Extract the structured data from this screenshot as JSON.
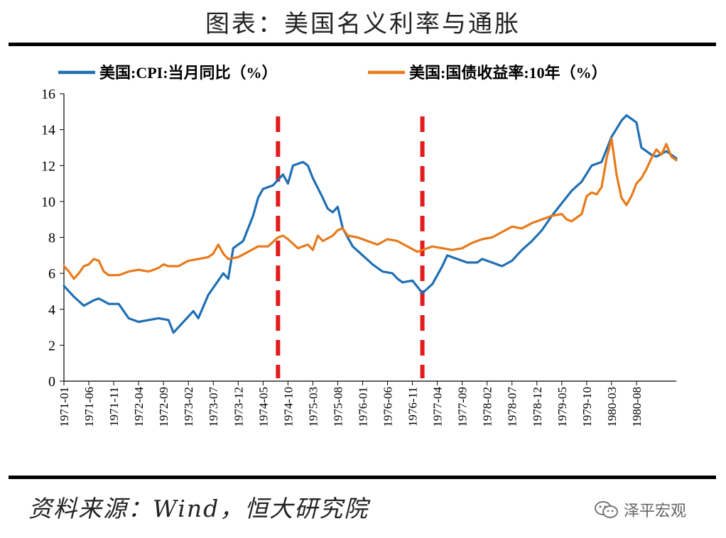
{
  "header": {
    "title": "图表：美国名义利率与通胀"
  },
  "footer": {
    "source": "资料来源：Wind，恒大研究院",
    "watermark": "泽平宏观"
  },
  "colors": {
    "cpi": "#1f6fb4",
    "yield": "#e87a1a",
    "marker": "#e31b1b"
  },
  "chart_data": {
    "type": "line",
    "ylim": [
      0,
      16
    ],
    "yticks": [
      "0",
      "2",
      "4",
      "6",
      "8",
      "10",
      "12",
      "14",
      "16"
    ],
    "x_tick_labels": [
      "1971-01",
      "1971-06",
      "1971-11",
      "1972-04",
      "1972-09",
      "1973-02",
      "1973-07",
      "1973-12",
      "1974-05",
      "1974-10",
      "1975-03",
      "1975-08",
      "1976-01",
      "1976-06",
      "1976-11",
      "1977-04",
      "1977-09",
      "1978-02",
      "1978-07",
      "1978-12",
      "1979-05",
      "1979-10",
      "1980-03",
      "1980-08"
    ],
    "x_range": [
      "1971-01",
      "1981-04"
    ],
    "markers": [
      "1974-08",
      "1977-01"
    ],
    "series": [
      {
        "name": "美国:CPI:当月同比（%）",
        "color": "#1f6fb4",
        "points": [
          [
            "1971-01",
            5.3
          ],
          [
            "1971-03",
            4.7
          ],
          [
            "1971-05",
            4.2
          ],
          [
            "1971-07",
            4.5
          ],
          [
            "1971-08",
            4.6
          ],
          [
            "1971-10",
            4.3
          ],
          [
            "1971-12",
            4.3
          ],
          [
            "1972-02",
            3.5
          ],
          [
            "1972-04",
            3.3
          ],
          [
            "1972-06",
            3.4
          ],
          [
            "1972-08",
            3.5
          ],
          [
            "1972-10",
            3.4
          ],
          [
            "1972-11",
            2.7
          ],
          [
            "1972-12",
            3.0
          ],
          [
            "1973-02",
            3.6
          ],
          [
            "1973-03",
            3.9
          ],
          [
            "1973-04",
            3.5
          ],
          [
            "1973-06",
            4.8
          ],
          [
            "1973-08",
            5.6
          ],
          [
            "1973-09",
            6.0
          ],
          [
            "1973-10",
            5.7
          ],
          [
            "1973-11",
            7.4
          ],
          [
            "1974-01",
            7.8
          ],
          [
            "1974-03",
            9.2
          ],
          [
            "1974-04",
            10.2
          ],
          [
            "1974-05",
            10.7
          ],
          [
            "1974-07",
            10.9
          ],
          [
            "1974-09",
            11.5
          ],
          [
            "1974-10",
            11.0
          ],
          [
            "1974-11",
            12.0
          ],
          [
            "1975-01",
            12.2
          ],
          [
            "1975-02",
            12.0
          ],
          [
            "1975-03",
            11.3
          ],
          [
            "1975-05",
            10.2
          ],
          [
            "1975-06",
            9.6
          ],
          [
            "1975-07",
            9.4
          ],
          [
            "1975-08",
            9.7
          ],
          [
            "1975-09",
            8.5
          ],
          [
            "1975-11",
            7.5
          ],
          [
            "1976-01",
            7.0
          ],
          [
            "1976-03",
            6.5
          ],
          [
            "1976-05",
            6.1
          ],
          [
            "1976-07",
            6.0
          ],
          [
            "1976-08",
            5.7
          ],
          [
            "1976-09",
            5.5
          ],
          [
            "1976-11",
            5.6
          ],
          [
            "1977-01",
            4.9
          ],
          [
            "1977-03",
            5.4
          ],
          [
            "1977-05",
            6.4
          ],
          [
            "1977-06",
            7.0
          ],
          [
            "1977-08",
            6.8
          ],
          [
            "1977-10",
            6.6
          ],
          [
            "1977-12",
            6.6
          ],
          [
            "1978-01",
            6.8
          ],
          [
            "1978-03",
            6.6
          ],
          [
            "1978-05",
            6.4
          ],
          [
            "1978-07",
            6.7
          ],
          [
            "1978-09",
            7.3
          ],
          [
            "1978-11",
            7.8
          ],
          [
            "1979-01",
            8.4
          ],
          [
            "1979-03",
            9.2
          ],
          [
            "1979-05",
            9.9
          ],
          [
            "1979-07",
            10.6
          ],
          [
            "1979-09",
            11.1
          ],
          [
            "1979-11",
            12.0
          ],
          [
            "1980-01",
            12.2
          ],
          [
            "1980-03",
            13.6
          ],
          [
            "1980-05",
            14.5
          ],
          [
            "1980-06",
            14.8
          ],
          [
            "1980-08",
            14.4
          ],
          [
            "1980-09",
            13.0
          ],
          [
            "1980-11",
            12.6
          ],
          [
            "1980-12",
            12.5
          ],
          [
            "1981-02",
            12.8
          ],
          [
            "1981-04",
            12.4
          ]
        ]
      },
      {
        "name": "美国:国债收益率:10年（%）",
        "color": "#e87a1a",
        "points": [
          [
            "1971-01",
            6.4
          ],
          [
            "1971-02",
            6.1
          ],
          [
            "1971-03",
            5.7
          ],
          [
            "1971-04",
            6.0
          ],
          [
            "1971-05",
            6.4
          ],
          [
            "1971-06",
            6.5
          ],
          [
            "1971-07",
            6.8
          ],
          [
            "1971-08",
            6.7
          ],
          [
            "1971-09",
            6.1
          ],
          [
            "1971-10",
            5.9
          ],
          [
            "1971-12",
            5.9
          ],
          [
            "1972-02",
            6.1
          ],
          [
            "1972-04",
            6.2
          ],
          [
            "1972-06",
            6.1
          ],
          [
            "1972-08",
            6.3
          ],
          [
            "1972-09",
            6.5
          ],
          [
            "1972-10",
            6.4
          ],
          [
            "1972-12",
            6.4
          ],
          [
            "1973-02",
            6.7
          ],
          [
            "1973-04",
            6.8
          ],
          [
            "1973-06",
            6.9
          ],
          [
            "1973-07",
            7.1
          ],
          [
            "1973-08",
            7.6
          ],
          [
            "1973-09",
            7.1
          ],
          [
            "1973-10",
            6.8
          ],
          [
            "1973-12",
            6.9
          ],
          [
            "1974-02",
            7.2
          ],
          [
            "1974-04",
            7.5
          ],
          [
            "1974-06",
            7.5
          ],
          [
            "1974-08",
            8.0
          ],
          [
            "1974-09",
            8.1
          ],
          [
            "1974-10",
            7.9
          ],
          [
            "1974-12",
            7.4
          ],
          [
            "1975-02",
            7.6
          ],
          [
            "1975-03",
            7.3
          ],
          [
            "1975-04",
            8.1
          ],
          [
            "1975-05",
            7.8
          ],
          [
            "1975-07",
            8.1
          ],
          [
            "1975-08",
            8.4
          ],
          [
            "1975-09",
            8.5
          ],
          [
            "1975-10",
            8.1
          ],
          [
            "1975-12",
            8.0
          ],
          [
            "1976-02",
            7.8
          ],
          [
            "1976-04",
            7.6
          ],
          [
            "1976-06",
            7.9
          ],
          [
            "1976-08",
            7.8
          ],
          [
            "1976-10",
            7.5
          ],
          [
            "1976-12",
            7.2
          ],
          [
            "1977-01",
            7.3
          ],
          [
            "1977-03",
            7.5
          ],
          [
            "1977-05",
            7.4
          ],
          [
            "1977-07",
            7.3
          ],
          [
            "1977-09",
            7.4
          ],
          [
            "1977-11",
            7.7
          ],
          [
            "1978-01",
            7.9
          ],
          [
            "1978-03",
            8.0
          ],
          [
            "1978-05",
            8.3
          ],
          [
            "1978-07",
            8.6
          ],
          [
            "1978-09",
            8.5
          ],
          [
            "1978-11",
            8.8
          ],
          [
            "1979-01",
            9.0
          ],
          [
            "1979-03",
            9.2
          ],
          [
            "1979-05",
            9.3
          ],
          [
            "1979-06",
            9.0
          ],
          [
            "1979-07",
            8.9
          ],
          [
            "1979-09",
            9.3
          ],
          [
            "1979-10",
            10.3
          ],
          [
            "1979-11",
            10.5
          ],
          [
            "1979-12",
            10.4
          ],
          [
            "1980-01",
            10.8
          ],
          [
            "1980-02",
            12.4
          ],
          [
            "1980-03",
            13.5
          ],
          [
            "1980-04",
            11.5
          ],
          [
            "1980-05",
            10.2
          ],
          [
            "1980-06",
            9.8
          ],
          [
            "1980-07",
            10.3
          ],
          [
            "1980-08",
            11.0
          ],
          [
            "1980-09",
            11.3
          ],
          [
            "1980-10",
            11.8
          ],
          [
            "1980-11",
            12.4
          ],
          [
            "1980-12",
            12.9
          ],
          [
            "1981-01",
            12.6
          ],
          [
            "1981-02",
            13.2
          ],
          [
            "1981-03",
            12.5
          ],
          [
            "1981-04",
            12.3
          ]
        ]
      }
    ]
  }
}
